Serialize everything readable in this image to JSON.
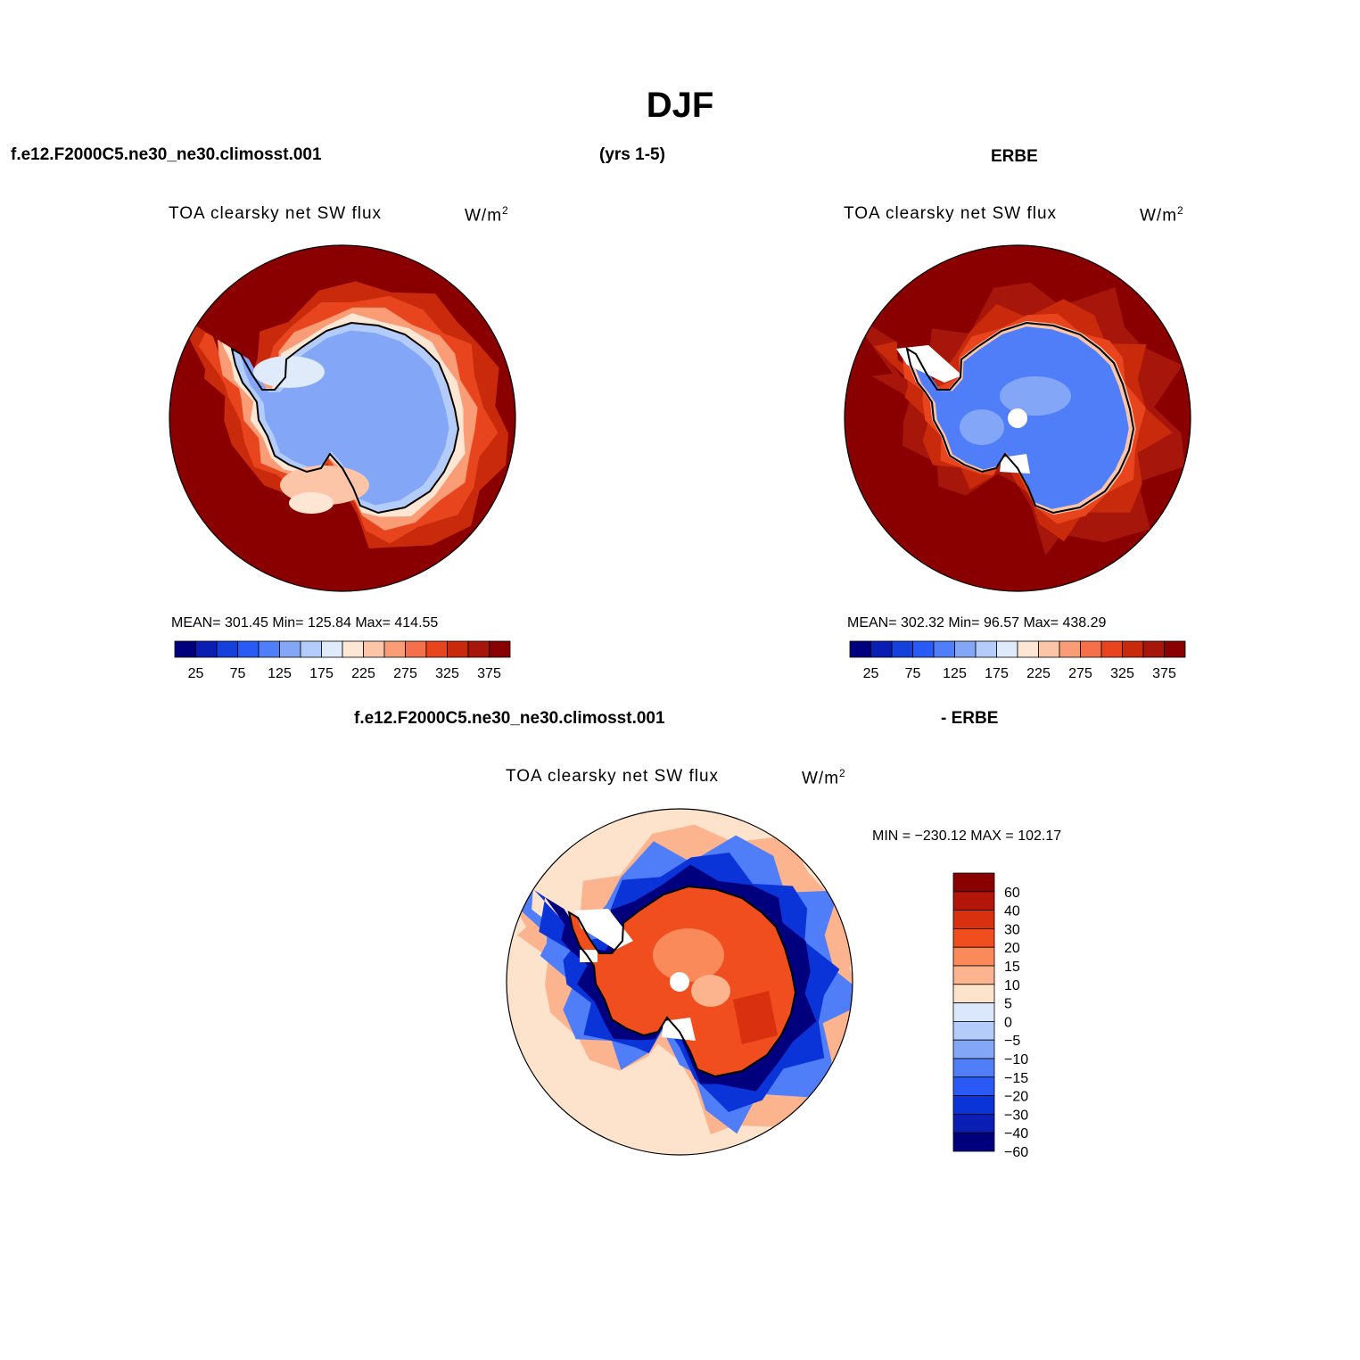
{
  "figure": {
    "title": "DJF",
    "top_left_header": "f.e12.F2000C5.ne30_ne30.climosst.001",
    "top_center_header": "(yrs 1-5)",
    "top_right_header": "ERBE",
    "bottom_left_header": "f.e12.F2000C5.ne30_ne30.climosst.001",
    "bottom_right_header": "- ERBE"
  },
  "colors": {
    "model_obs_palette": [
      "#00007f",
      "#0a1eb4",
      "#1440dc",
      "#2a5af5",
      "#4f7ef8",
      "#84a6f7",
      "#b4ccf9",
      "#dfeafb",
      "#fde6d4",
      "#fcc5a8",
      "#fa9c76",
      "#f5704a",
      "#e8451f",
      "#c92a0c",
      "#a7160a",
      "#8a0000"
    ],
    "diff_palette": [
      "#8a0000",
      "#b4150a",
      "#d9300f",
      "#f04e1f",
      "#fa8a5a",
      "#fcb48f",
      "#fde3cc",
      "#dbe8fb",
      "#b4ccf9",
      "#84a6f7",
      "#4f7ef8",
      "#2a5af5",
      "#0a33d8",
      "#0a1eb4",
      "#00007f"
    ]
  },
  "chart_data": [
    {
      "type": "heatmap",
      "projection": "south-polar-stereographic",
      "panel": "model",
      "variable": "TOA clearsky net SW flux",
      "units": "W/m²",
      "stats_text": "MEAN= 301.45   Min= 125.84   Max= 414.55",
      "mean": 301.45,
      "min": 125.84,
      "max": 414.55,
      "colorbar_ticks": [
        "25",
        "75",
        "125",
        "175",
        "225",
        "275",
        "325",
        "375"
      ],
      "region_values": {
        "ocean": 390,
        "coast_band_outer": 330,
        "coast_band_inner": 250,
        "antarctica": 160,
        "weddell_ross": 200
      }
    },
    {
      "type": "heatmap",
      "projection": "south-polar-stereographic",
      "panel": "ERBE",
      "variable": "TOA clearsky net SW flux",
      "units": "W/m²",
      "stats_text": "MEAN= 302.32   Min=   96.57   Max= 438.29",
      "mean": 302.32,
      "min": 96.57,
      "max": 438.29,
      "colorbar_ticks": [
        "25",
        "75",
        "125",
        "175",
        "225",
        "275",
        "325",
        "375"
      ],
      "region_values": {
        "ocean": 390,
        "coast_band": 330,
        "antarctica": 130
      }
    },
    {
      "type": "heatmap",
      "projection": "south-polar-stereographic",
      "panel": "difference",
      "variable": "TOA clearsky net SW flux",
      "units": "W/m²",
      "stats_text": "MIN = −230.12 MAX = 102.17",
      "min": -230.12,
      "max": 102.17,
      "colorbar_ticks": [
        "60",
        "40",
        "30",
        "20",
        "15",
        "10",
        "5",
        "0",
        "−5",
        "−10",
        "−15",
        "−20",
        "−30",
        "−40",
        "−60"
      ],
      "region_values": {
        "open_ocean": 5,
        "sea_ice_zone": -40,
        "antarctica": 30
      }
    }
  ],
  "panel_titles": {
    "model": {
      "left": "TOA clearsky net SW flux",
      "right": "W/m",
      "sup": "2"
    },
    "obs": {
      "left": "TOA clearsky net SW flux",
      "right": "W/m",
      "sup": "2"
    },
    "diff": {
      "left": "TOA clearsky net SW flux",
      "right": "W/m",
      "sup": "2"
    }
  }
}
